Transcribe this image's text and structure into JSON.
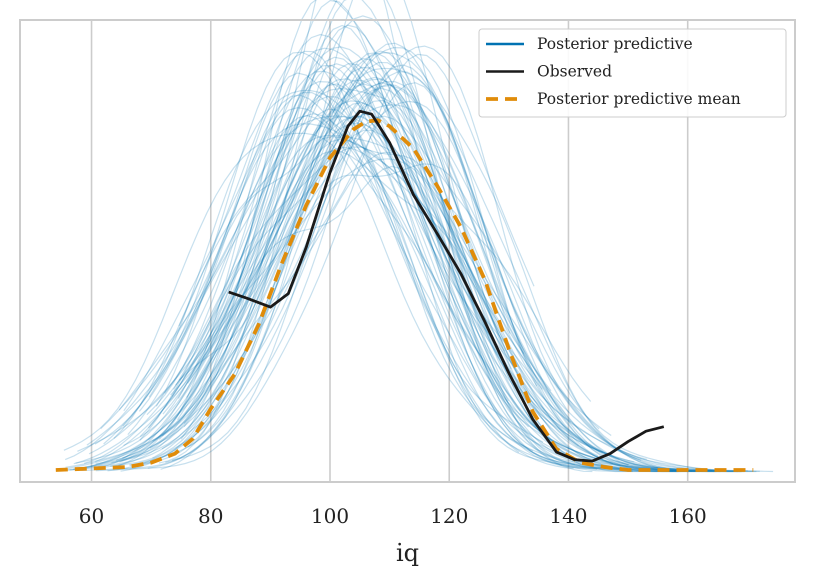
{
  "chart_data": {
    "type": "line",
    "title": "",
    "xlabel": "iq",
    "ylabel": "",
    "xlim": [
      48,
      178
    ],
    "ylim": [
      -0.0007,
      0.0302
    ],
    "xticks": [
      60,
      80,
      100,
      120,
      140,
      160
    ],
    "xtick_labels": [
      "60",
      "80",
      "100",
      "120",
      "140",
      "160"
    ],
    "grid": "vertical",
    "legend_position": "top-right",
    "legend": [
      {
        "label": "Posterior predictive",
        "color": "#0072b2",
        "style": "solid"
      },
      {
        "label": "Observed",
        "color": "#1a1a1a",
        "style": "solid"
      },
      {
        "label": "Posterior predictive mean",
        "color": "#e08c0a",
        "style": "dashed"
      }
    ],
    "colors": {
      "posterior": "#0072b2",
      "observed": "#1a1a1a",
      "mean": "#e08c0a",
      "grid": "#cccccc",
      "frame": "#cccccc"
    },
    "series": [
      {
        "name": "Posterior predictive mean",
        "x": [
          54,
          60,
          66,
          70,
          74,
          77,
          80,
          84,
          88,
          92,
          96,
          100,
          104,
          106,
          108,
          110,
          114,
          118,
          122,
          126,
          130,
          134,
          138,
          142,
          146,
          150,
          156,
          164,
          171
        ],
        "y": [
          0.0001,
          0.0002,
          0.0003,
          0.0006,
          0.0012,
          0.0022,
          0.0042,
          0.0065,
          0.0098,
          0.014,
          0.0178,
          0.021,
          0.0229,
          0.0234,
          0.0235,
          0.0231,
          0.0216,
          0.0191,
          0.0163,
          0.0128,
          0.0082,
          0.004,
          0.0015,
          0.0006,
          0.0003,
          0.0001,
          0.0001,
          0.0001,
          0.0001
        ]
      },
      {
        "name": "Observed",
        "x": [
          83,
          86,
          90,
          93,
          96,
          100,
          103,
          105,
          107,
          110,
          114,
          118,
          122,
          126,
          130,
          134,
          138,
          141,
          144,
          147,
          150,
          153,
          156
        ],
        "y": [
          0.012,
          0.0116,
          0.011,
          0.0119,
          0.015,
          0.02,
          0.0231,
          0.0241,
          0.0239,
          0.022,
          0.0185,
          0.0159,
          0.0132,
          0.01,
          0.0066,
          0.0035,
          0.0013,
          0.0008,
          0.0007,
          0.0012,
          0.002,
          0.0027,
          0.003
        ]
      }
    ]
  }
}
